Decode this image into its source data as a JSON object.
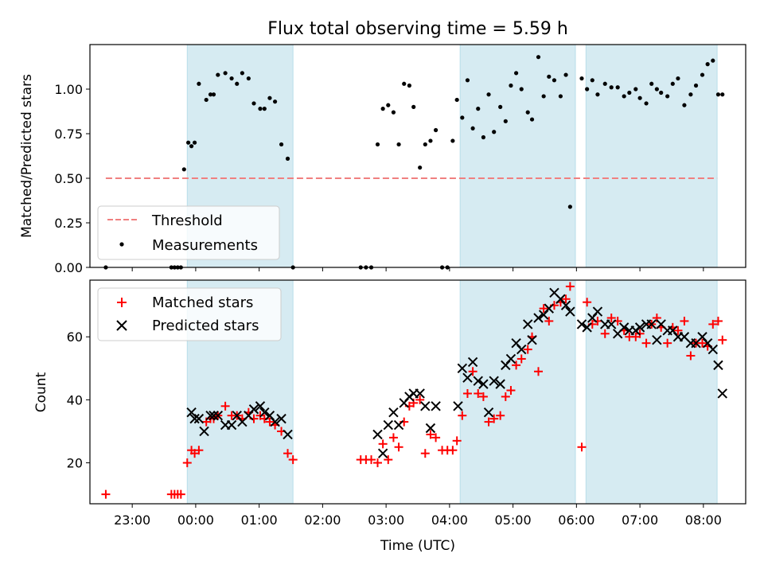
{
  "chart_data": [
    {
      "type": "scatter",
      "title": "Flux total observing time = 5.59 h",
      "xlabel": "",
      "ylabel": "Matched/Predicted stars",
      "xlim": [
        "22:20",
        "08:40"
      ],
      "ylim": [
        0,
        1.25
      ],
      "yticks": [
        {
          "value": 0.0,
          "label": "0.00"
        },
        {
          "value": 0.25,
          "label": "0.25"
        },
        {
          "value": 0.5,
          "label": "0.50"
        },
        {
          "value": 0.75,
          "label": "0.75"
        },
        {
          "value": 1.0,
          "label": "1.00"
        }
      ],
      "shaded_intervals": [
        [
          "23:52",
          "01:32"
        ],
        [
          "04:10",
          "05:59"
        ],
        [
          "06:09",
          "08:13"
        ]
      ],
      "legend": {
        "placement": "lower-left",
        "entries": [
          {
            "label": "Threshold",
            "color": "#f08080",
            "marker": "dashed-line"
          },
          {
            "label": "Measurements",
            "color": "#000000",
            "marker": "dot"
          }
        ]
      },
      "series": [
        {
          "name": "Threshold",
          "color": "#f08080",
          "style": "dashed",
          "x": [
            "22:35",
            "08:13"
          ],
          "y": [
            0.5,
            0.5
          ]
        },
        {
          "name": "Measurements",
          "color": "#000000",
          "marker": "dot",
          "x": [
            "22:35",
            "23:37",
            "23:40",
            "23:43",
            "23:46",
            "23:49",
            "23:53",
            "23:56",
            "23:59",
            "00:03",
            "00:10",
            "00:14",
            "00:17",
            "00:21",
            "00:28",
            "00:34",
            "00:39",
            "00:44",
            "00:50",
            "00:55",
            "01:01",
            "01:05",
            "01:10",
            "01:15",
            "01:21",
            "01:27",
            "01:32",
            "02:36",
            "02:41",
            "02:46",
            "02:52",
            "02:57",
            "03:02",
            "03:07",
            "03:12",
            "03:17",
            "03:22",
            "03:26",
            "03:32",
            "03:37",
            "03:42",
            "03:47",
            "03:53",
            "03:58",
            "04:03",
            "04:07",
            "04:12",
            "04:17",
            "04:22",
            "04:27",
            "04:32",
            "04:37",
            "04:42",
            "04:48",
            "04:53",
            "04:58",
            "05:03",
            "05:08",
            "05:14",
            "05:18",
            "05:24",
            "05:29",
            "05:34",
            "05:39",
            "05:45",
            "05:50",
            "05:54",
            "06:05",
            "06:10",
            "06:15",
            "06:20",
            "06:27",
            "06:33",
            "06:39",
            "06:45",
            "06:50",
            "06:56",
            "07:00",
            "07:06",
            "07:11",
            "07:16",
            "07:20",
            "07:26",
            "07:31",
            "07:36",
            "07:42",
            "07:48",
            "07:53",
            "07:59",
            "08:04",
            "08:09",
            "08:14",
            "08:18"
          ],
          "y": [
            0.0,
            0.0,
            0.0,
            0.0,
            0.0,
            0.55,
            0.7,
            0.68,
            0.7,
            1.03,
            0.94,
            0.97,
            0.97,
            1.08,
            1.09,
            1.06,
            1.03,
            1.09,
            1.06,
            0.92,
            0.89,
            0.89,
            0.95,
            0.93,
            0.69,
            0.61,
            0.0,
            0.0,
            0.0,
            0.0,
            0.69,
            0.89,
            0.91,
            0.87,
            0.69,
            1.03,
            1.02,
            0.9,
            0.56,
            0.69,
            0.71,
            0.77,
            0.0,
            0.0,
            0.71,
            0.94,
            0.84,
            1.05,
            0.78,
            0.89,
            0.73,
            0.97,
            0.76,
            0.9,
            0.82,
            1.02,
            1.09,
            1.0,
            0.87,
            0.83,
            1.18,
            0.96,
            1.07,
            1.05,
            0.96,
            1.08,
            0.34,
            1.06,
            1.0,
            1.05,
            0.97,
            1.03,
            1.01,
            1.01,
            0.96,
            0.98,
            1.0,
            0.95,
            0.92,
            1.03,
            1.0,
            0.98,
            0.96,
            1.03,
            1.06,
            0.91,
            0.97,
            1.02,
            1.08,
            1.14,
            1.16,
            0.97,
            0.97
          ]
        }
      ]
    },
    {
      "type": "scatter",
      "title": "",
      "xlabel": "Time (UTC)",
      "ylabel": "Count",
      "xlim": [
        "22:20",
        "08:40"
      ],
      "ylim": [
        7,
        78
      ],
      "yticks": [
        {
          "value": 20,
          "label": "20"
        },
        {
          "value": 40,
          "label": "40"
        },
        {
          "value": 60,
          "label": "60"
        }
      ],
      "xticks": [
        {
          "value": "23:00",
          "label": "23:00"
        },
        {
          "value": "00:00",
          "label": "00:00"
        },
        {
          "value": "01:00",
          "label": "01:00"
        },
        {
          "value": "02:00",
          "label": "02:00"
        },
        {
          "value": "03:00",
          "label": "03:00"
        },
        {
          "value": "04:00",
          "label": "04:00"
        },
        {
          "value": "05:00",
          "label": "05:00"
        },
        {
          "value": "06:00",
          "label": "06:00"
        },
        {
          "value": "07:00",
          "label": "07:00"
        },
        {
          "value": "08:00",
          "label": "08:00"
        }
      ],
      "shaded_intervals": [
        [
          "23:52",
          "01:32"
        ],
        [
          "04:10",
          "05:59"
        ],
        [
          "06:09",
          "08:13"
        ]
      ],
      "legend": {
        "placement": "top-left",
        "entries": [
          {
            "label": "Matched stars",
            "color": "#ff0000",
            "marker": "plus"
          },
          {
            "label": "Predicted stars",
            "color": "#000000",
            "marker": "x"
          }
        ]
      },
      "series": [
        {
          "name": "Matched stars",
          "color": "#ff0000",
          "marker": "plus",
          "x": [
            "22:35",
            "23:37",
            "23:40",
            "23:43",
            "23:46",
            "23:52",
            "23:56",
            "23:59",
            "00:03",
            "00:10",
            "00:14",
            "00:17",
            "00:21",
            "00:28",
            "00:34",
            "00:39",
            "00:44",
            "00:50",
            "00:55",
            "01:01",
            "01:05",
            "01:10",
            "01:15",
            "01:21",
            "01:27",
            "01:32",
            "02:36",
            "02:41",
            "02:46",
            "02:52",
            "02:57",
            "03:02",
            "03:07",
            "03:12",
            "03:17",
            "03:22",
            "03:26",
            "03:32",
            "03:37",
            "03:42",
            "03:47",
            "03:53",
            "03:58",
            "04:03",
            "04:07",
            "04:12",
            "04:17",
            "04:22",
            "04:27",
            "04:32",
            "04:37",
            "04:42",
            "04:48",
            "04:53",
            "04:58",
            "05:03",
            "05:08",
            "05:14",
            "05:18",
            "05:24",
            "05:29",
            "05:34",
            "05:39",
            "05:45",
            "05:50",
            "05:54",
            "06:05",
            "06:10",
            "06:15",
            "06:20",
            "06:27",
            "06:33",
            "06:39",
            "06:45",
            "06:50",
            "06:56",
            "07:00",
            "07:06",
            "07:11",
            "07:16",
            "07:20",
            "07:26",
            "07:31",
            "07:36",
            "07:42",
            "07:48",
            "07:53",
            "07:59",
            "08:04",
            "08:09",
            "08:14",
            "08:18"
          ],
          "y": [
            10,
            10,
            10,
            10,
            10,
            20,
            24,
            23,
            24,
            33,
            34,
            34,
            35,
            38,
            35,
            35,
            34,
            36,
            34,
            35,
            34,
            33,
            32,
            30,
            23,
            21,
            21,
            21,
            21,
            20,
            26,
            21,
            28,
            25,
            33,
            38,
            39,
            40,
            23,
            29,
            28,
            24,
            24,
            24,
            27,
            35,
            42,
            49,
            42,
            41,
            33,
            34,
            35,
            41,
            43,
            51,
            53,
            56,
            60,
            49,
            69,
            65,
            70,
            71,
            72,
            76,
            25,
            71,
            64,
            65,
            61,
            66,
            65,
            62,
            60,
            60,
            61,
            58,
            64,
            66,
            63,
            58,
            63,
            62,
            65,
            54,
            58,
            58,
            57,
            64,
            65,
            59
          ]
        },
        {
          "name": "Predicted stars",
          "color": "#000000",
          "marker": "x",
          "x": [
            "23:56",
            "23:59",
            "00:03",
            "00:08",
            "00:14",
            "00:17",
            "00:21",
            "00:28",
            "00:34",
            "00:39",
            "00:44",
            "00:50",
            "00:55",
            "01:01",
            "01:05",
            "01:10",
            "01:15",
            "01:21",
            "01:27",
            "02:52",
            "02:57",
            "03:02",
            "03:07",
            "03:12",
            "03:17",
            "03:22",
            "03:26",
            "03:32",
            "03:37",
            "03:42",
            "03:47",
            "04:08",
            "04:12",
            "04:17",
            "04:22",
            "04:27",
            "04:32",
            "04:37",
            "04:42",
            "04:48",
            "04:53",
            "04:58",
            "05:03",
            "05:08",
            "05:14",
            "05:18",
            "05:24",
            "05:29",
            "05:34",
            "05:39",
            "05:45",
            "05:50",
            "05:54",
            "06:05",
            "06:10",
            "06:15",
            "06:20",
            "06:27",
            "06:33",
            "06:39",
            "06:45",
            "06:50",
            "06:56",
            "07:00",
            "07:06",
            "07:11",
            "07:16",
            "07:20",
            "07:26",
            "07:31",
            "07:36",
            "07:42",
            "07:48",
            "07:53",
            "07:59",
            "08:04",
            "08:09",
            "08:14",
            "08:18"
          ],
          "y": [
            36,
            34,
            34,
            30,
            35,
            35,
            35,
            32,
            32,
            35,
            33,
            35,
            37,
            38,
            36,
            35,
            33,
            34,
            29,
            29,
            23,
            32,
            36,
            32,
            39,
            41,
            42,
            42,
            38,
            31,
            38,
            38,
            50,
            47,
            52,
            46,
            45,
            36,
            46,
            45,
            51,
            53,
            58,
            56,
            64,
            59,
            66,
            67,
            69,
            74,
            72,
            70,
            68,
            64,
            63,
            66,
            68,
            64,
            64,
            61,
            63,
            62,
            62,
            63,
            64,
            64,
            59,
            64,
            62,
            62,
            60,
            60,
            58,
            58,
            60,
            58,
            56,
            51,
            42
          ]
        }
      ]
    }
  ]
}
